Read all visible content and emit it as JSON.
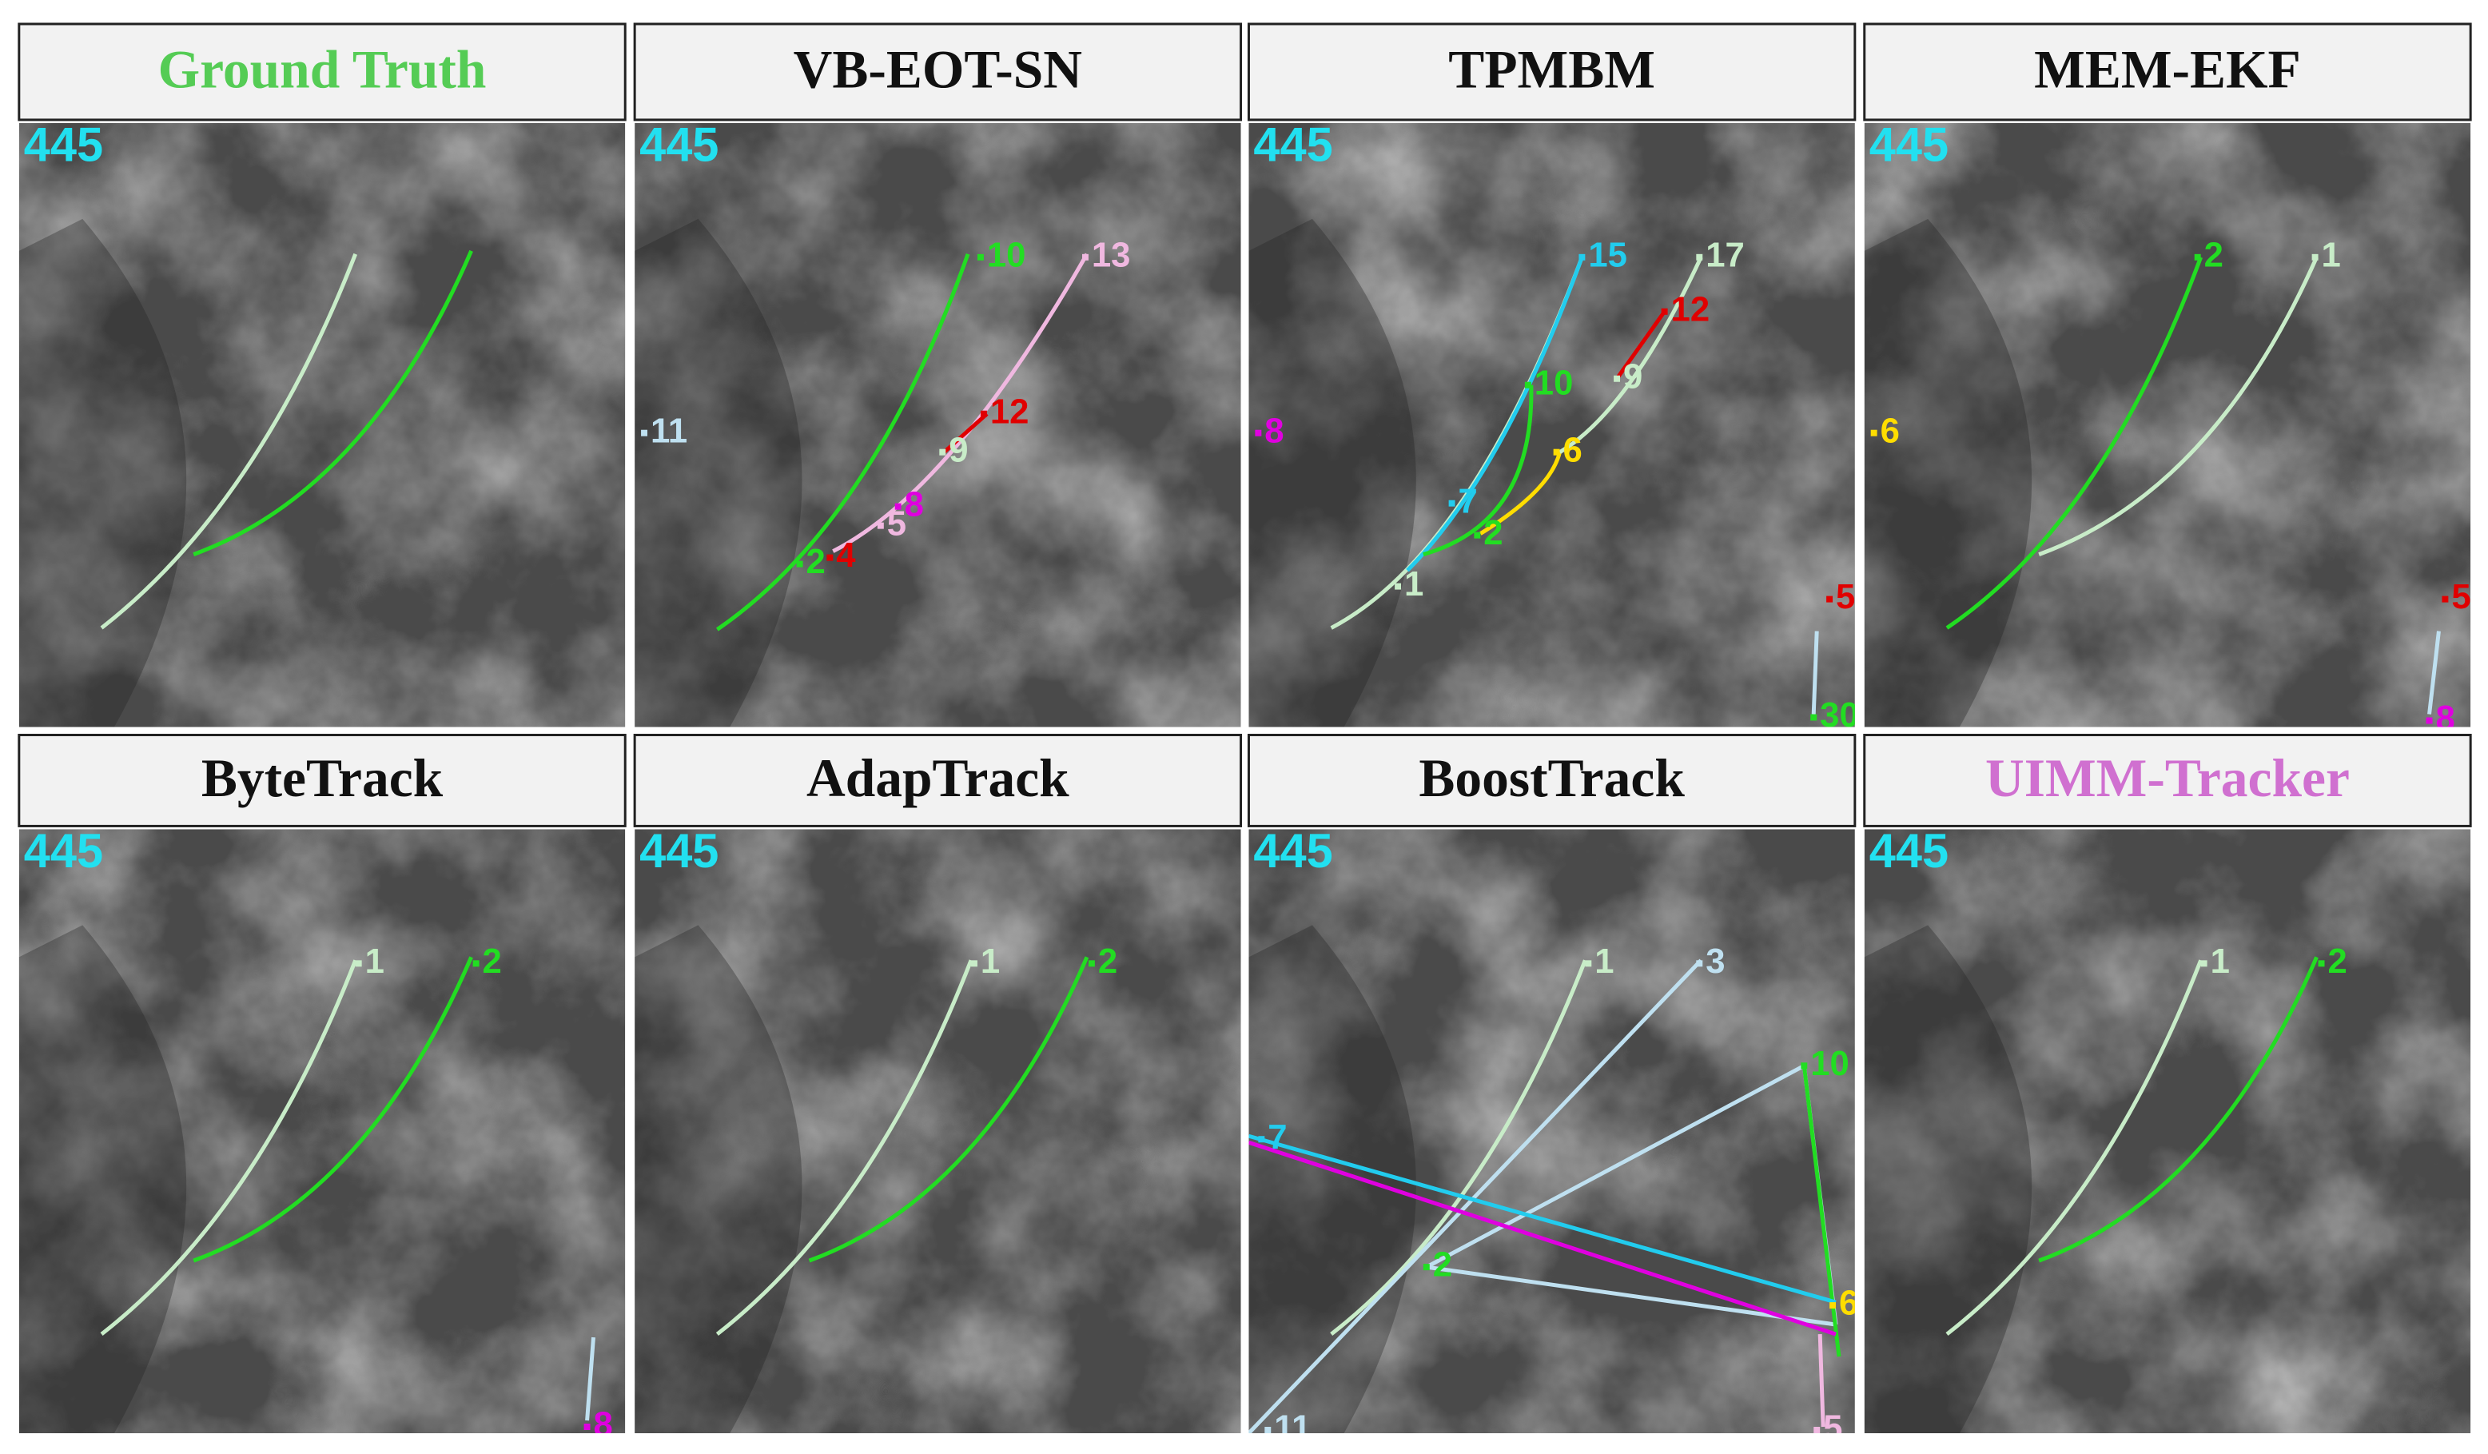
{
  "panels": [
    {
      "title": "Ground Truth",
      "frame": "445",
      "labels": []
    },
    {
      "title": "VB-EOT-SN",
      "frame": "445",
      "labels": [
        "10",
        "13",
        "12",
        "9",
        "11",
        "8",
        "5",
        "4",
        "2"
      ]
    },
    {
      "title": "TPMBM",
      "frame": "445",
      "labels": [
        "15",
        "17",
        "12",
        "10",
        "9",
        "8",
        "6",
        "7",
        "2",
        "1",
        "5",
        "30"
      ]
    },
    {
      "title": "MEM-EKF",
      "frame": "445",
      "labels": [
        "2",
        "1",
        "6",
        "5",
        "8"
      ]
    },
    {
      "title": "ByteTrack",
      "frame": "445",
      "labels": [
        "1",
        "2",
        "8"
      ]
    },
    {
      "title": "AdapTrack",
      "frame": "445",
      "labels": [
        "1",
        "2"
      ]
    },
    {
      "title": "BoostTrack",
      "frame": "445",
      "labels": [
        "1",
        "3",
        "10",
        "7",
        "2",
        "6",
        "11",
        "5"
      ]
    },
    {
      "title": "UIMM-Tracker",
      "frame": "445",
      "labels": [
        "1",
        "2"
      ]
    }
  ]
}
